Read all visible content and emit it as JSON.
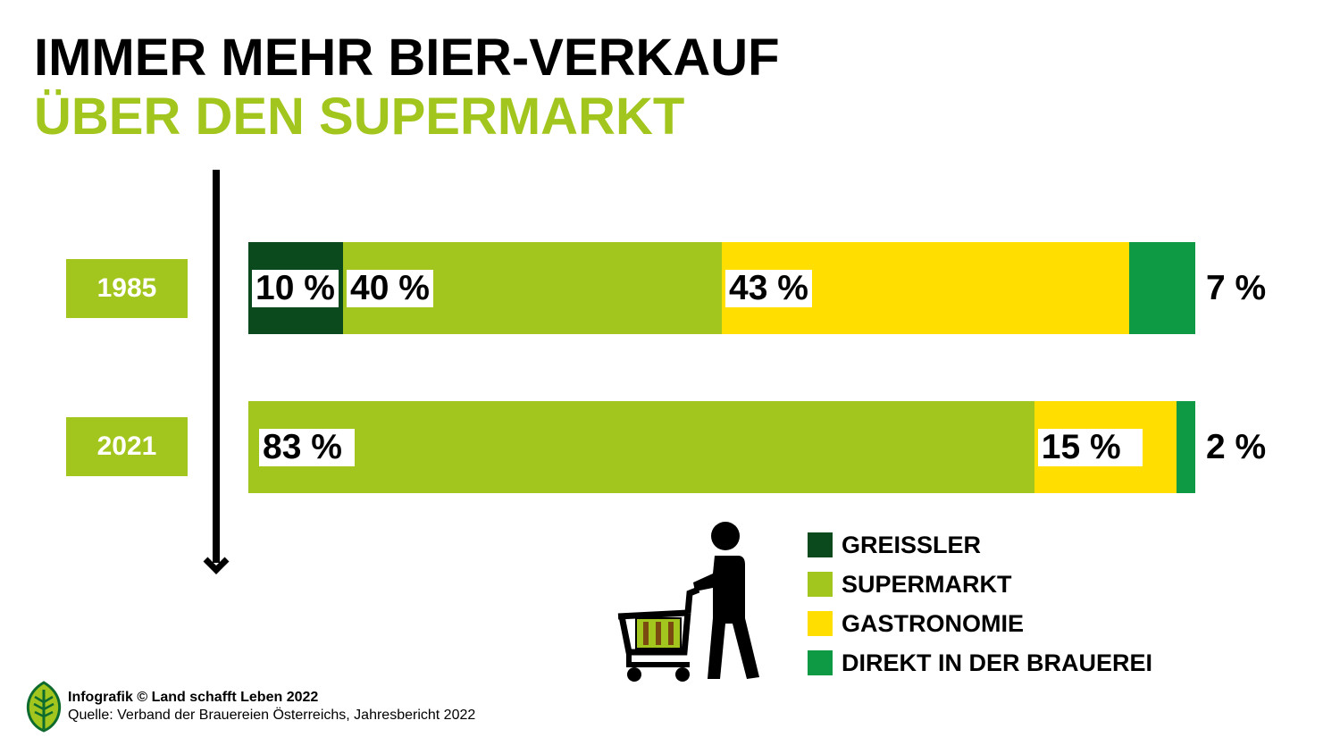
{
  "header": {
    "title": "IMMER MEHR BIER-VERKAUF",
    "subtitle": "ÜBER DEN SUPERMARKT"
  },
  "colors": {
    "greissler": "#0b4a1c",
    "supermarkt": "#a2c61d",
    "gastronomie": "#ffde00",
    "brauerei": "#0e9a45",
    "accent": "#a2c61d"
  },
  "chart_data": {
    "type": "bar",
    "orientation": "horizontal",
    "stacked": true,
    "unit": "%",
    "categories": [
      "1985",
      "2021"
    ],
    "series": [
      {
        "name": "GREISSLER",
        "values": [
          10,
          0
        ]
      },
      {
        "name": "SUPERMARKT",
        "values": [
          40,
          83
        ]
      },
      {
        "name": "GASTRONOMIE",
        "values": [
          43,
          15
        ]
      },
      {
        "name": "DIREKT IN DER BRAUEREI",
        "values": [
          7,
          2
        ]
      }
    ],
    "data_labels": [
      [
        "10 %",
        "40 %",
        "43 %",
        "7 %"
      ],
      [
        "",
        "83 %",
        "15 %",
        "2 %"
      ]
    ],
    "legend_position": "bottom-right"
  },
  "footer": {
    "credit": "Infografik © Land schafft Leben 2022",
    "source": "Quelle: Verband der Brauereien Österreichs, Jahresbericht 2022"
  }
}
